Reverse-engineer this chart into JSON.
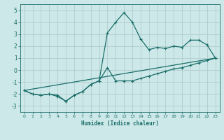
{
  "xlabel": "Humidex (Indice chaleur)",
  "ylabel": "",
  "background_color": "#cde8e8",
  "grid_color": "#b0cccc",
  "line_color": "#1a6e6a",
  "xlim": [
    -0.5,
    23.5
  ],
  "ylim": [
    -3.5,
    5.5
  ],
  "xticks": [
    0,
    1,
    2,
    3,
    4,
    5,
    6,
    7,
    8,
    9,
    10,
    11,
    12,
    13,
    14,
    15,
    16,
    17,
    18,
    19,
    20,
    21,
    22,
    23
  ],
  "yticks": [
    -3,
    -2,
    -1,
    0,
    1,
    2,
    3,
    4,
    5
  ],
  "line1_x": [
    0,
    1,
    2,
    3,
    4,
    5,
    6,
    7,
    8,
    9,
    10,
    11,
    12,
    13,
    14,
    15,
    16,
    17,
    18,
    19,
    20,
    21,
    22,
    23
  ],
  "line1_y": [
    -1.7,
    -2.0,
    -2.1,
    -2.0,
    -2.1,
    -2.6,
    -2.1,
    -1.8,
    -1.2,
    -0.9,
    3.1,
    4.0,
    4.8,
    4.0,
    2.6,
    1.7,
    1.9,
    1.8,
    2.0,
    1.9,
    2.5,
    2.5,
    2.1,
    1.0
  ],
  "line2_x": [
    0,
    1,
    2,
    3,
    4,
    5,
    6,
    7,
    8,
    9,
    10,
    11,
    12,
    13,
    14,
    15,
    16,
    17,
    18,
    19,
    20,
    21,
    22,
    23
  ],
  "line2_y": [
    -1.7,
    -2.0,
    -2.1,
    -2.0,
    -2.2,
    -2.6,
    -2.1,
    -1.8,
    -1.2,
    -0.9,
    0.2,
    -0.9,
    -0.9,
    -0.9,
    -0.7,
    -0.5,
    -0.3,
    -0.1,
    0.1,
    0.2,
    0.4,
    0.6,
    0.8,
    1.0
  ],
  "line3_x": [
    0,
    23
  ],
  "line3_y": [
    -1.7,
    1.0
  ]
}
